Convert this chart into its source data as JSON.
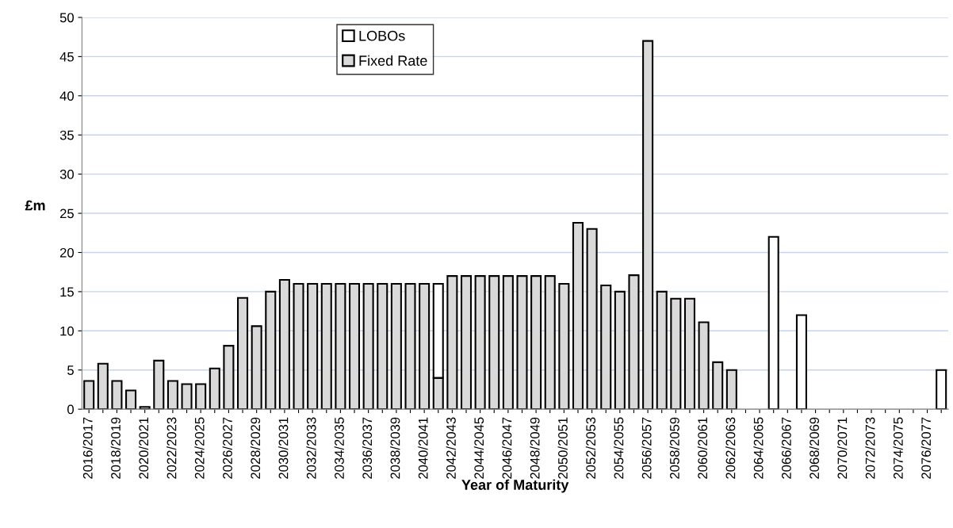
{
  "chart_data": {
    "type": "bar",
    "stacked": true,
    "xlabel": "Year of Maturity",
    "ylabel": "£m",
    "categories": [
      "2016/2017",
      null,
      "2018/2019",
      null,
      "2020/2021",
      null,
      "2022/2023",
      null,
      "2024/2025",
      null,
      "2026/2027",
      null,
      "2028/2029",
      null,
      "2030/2031",
      null,
      "2032/2033",
      null,
      "2034/2035",
      null,
      "2036/2037",
      null,
      "2038/2039",
      null,
      "2040/2041",
      null,
      "2042/2043",
      null,
      "2044/2045",
      null,
      "2046/2047",
      null,
      "2048/2049",
      null,
      "2050/2051",
      null,
      "2052/2053",
      null,
      "2054/2055",
      null,
      "2056/2057",
      null,
      "2058/2059",
      null,
      "2060/2061",
      null,
      "2062/2063",
      null,
      "2064/2065",
      null,
      "2066/2067",
      null,
      "2068/2069",
      null,
      "2070/2071",
      null,
      "2072/2073",
      null,
      "2074/2075",
      null,
      "2076/2077",
      null
    ],
    "series": [
      {
        "name": "Fixed Rate",
        "color": "#d9d9d9",
        "values": [
          3.6,
          5.8,
          3.6,
          2.4,
          0.3,
          6.2,
          3.6,
          3.2,
          3.2,
          5.2,
          8.1,
          14.2,
          10.6,
          15,
          16.5,
          16,
          16,
          16,
          16,
          16,
          16,
          16,
          16,
          16,
          16,
          4,
          17,
          17,
          17,
          17,
          17,
          17,
          17,
          17,
          16,
          23.8,
          23,
          15.8,
          15,
          17.1,
          47,
          15,
          14.1,
          14.1,
          11.1,
          6,
          5,
          null,
          null,
          null,
          null,
          null,
          null,
          null,
          null,
          null,
          null,
          null,
          null,
          null,
          null,
          null
        ]
      },
      {
        "name": "LOBOs",
        "color": "#ffffff",
        "values": [
          null,
          null,
          null,
          null,
          null,
          null,
          null,
          null,
          null,
          null,
          null,
          null,
          null,
          null,
          null,
          null,
          null,
          null,
          null,
          null,
          null,
          null,
          null,
          null,
          null,
          12,
          null,
          null,
          null,
          null,
          null,
          null,
          null,
          null,
          null,
          null,
          null,
          null,
          null,
          null,
          null,
          null,
          null,
          null,
          null,
          null,
          null,
          null,
          null,
          22,
          null,
          12,
          null,
          null,
          null,
          null,
          null,
          null,
          null,
          null,
          null,
          5
        ]
      }
    ],
    "ylim": [
      0,
      50
    ],
    "yticks": [
      0,
      5,
      10,
      15,
      20,
      25,
      30,
      35,
      40,
      45,
      50
    ],
    "grid": "y",
    "legend": "top"
  }
}
